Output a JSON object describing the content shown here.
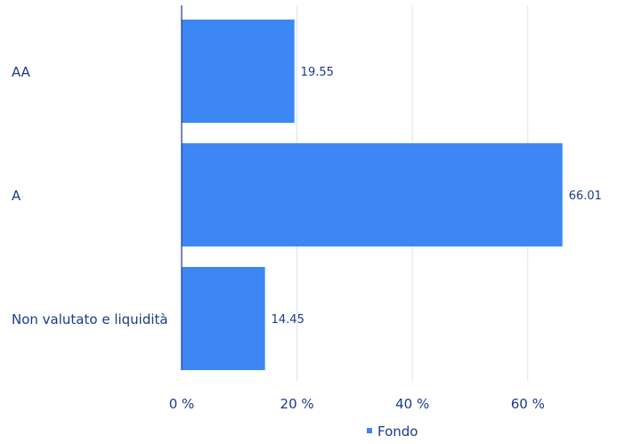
{
  "chart_data": {
    "type": "bar",
    "orientation": "horizontal",
    "categories": [
      "AA",
      "A",
      "Non valutato e liquidità"
    ],
    "series": [
      {
        "name": "Fondo",
        "values": [
          19.55,
          66.01,
          14.45
        ],
        "color": "#3d87f5"
      }
    ],
    "data_labels": [
      "19.55",
      "66.01",
      "14.45"
    ],
    "x_ticks": [
      0,
      20,
      40,
      60
    ],
    "x_tick_labels": [
      "0 %",
      "20 %",
      "40 %",
      "60 %"
    ],
    "xlim": [
      0,
      72
    ],
    "grid": true,
    "legend_position": "bottom-center",
    "colors": {
      "bar": "#3d87f5",
      "text": "#1a3a8c",
      "grid": "#d6e4f5",
      "axis": "#1a3a8c"
    }
  }
}
